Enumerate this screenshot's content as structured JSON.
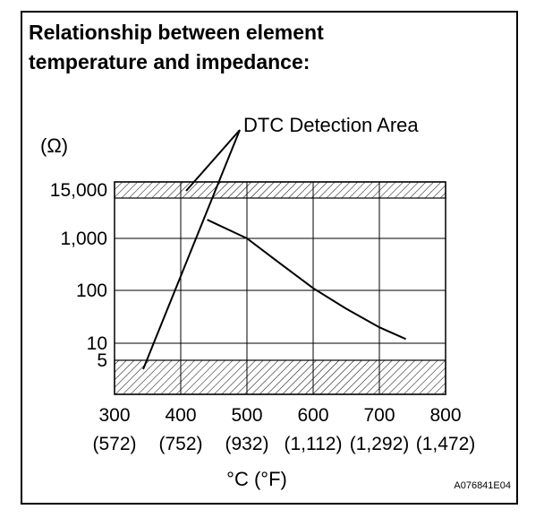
{
  "title_lines": [
    "Relationship between element",
    "temperature and impedance:"
  ],
  "figure_code": "A076841E04",
  "chart_data": {
    "type": "line",
    "title": "Relationship between element temperature and impedance:",
    "ylabel": "(Ω)",
    "xlabel": "°C (°F)",
    "x_ticks_c": [
      "300",
      "400",
      "500",
      "600",
      "700",
      "800"
    ],
    "x_ticks_f": [
      "(572)",
      "(752)",
      "(932)",
      "(1,112)",
      "(1,292)",
      "(1,472)"
    ],
    "y_ticks": [
      "15,000",
      "1,000",
      "100",
      "10",
      "5"
    ],
    "xlim": [
      300,
      800
    ],
    "y_scale": "log",
    "annotation": "DTC Detection Area",
    "detection_areas": [
      {
        "name": "upper",
        "y_from": "15,000",
        "y_to": "above"
      },
      {
        "name": "lower",
        "y_from": "below",
        "y_to": "5"
      }
    ],
    "series": [
      {
        "x": [
          440,
          500,
          550,
          600,
          650,
          700,
          740
        ],
        "y": [
          3500,
          1000,
          330,
          110,
          45,
          20,
          12
        ]
      }
    ],
    "grid": true
  }
}
